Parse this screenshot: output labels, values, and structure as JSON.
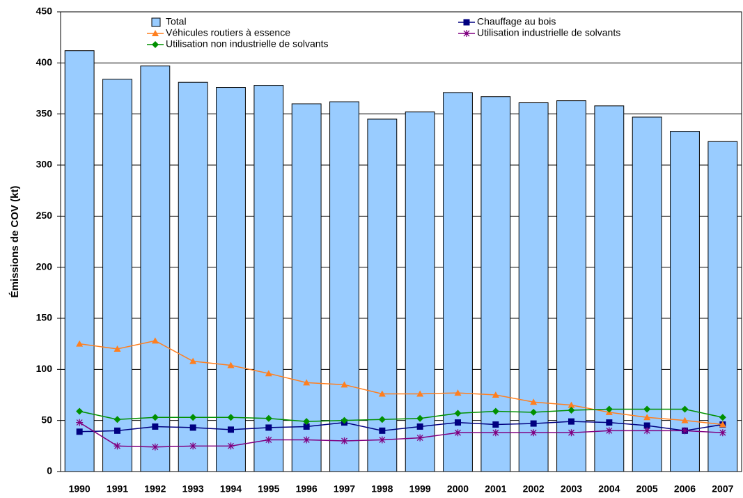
{
  "chart_data": {
    "type": "bar",
    "y_label": "Émissions de COV (kt)",
    "categories": [
      "1990",
      "1991",
      "1992",
      "1993",
      "1994",
      "1995",
      "1996",
      "1997",
      "1998",
      "1999",
      "2000",
      "2001",
      "2002",
      "2003",
      "2004",
      "2005",
      "2006",
      "2007"
    ],
    "ylim": [
      0,
      450
    ],
    "yticks": [
      0,
      50,
      100,
      150,
      200,
      250,
      300,
      350,
      400,
      450
    ],
    "grid": true,
    "series": [
      {
        "name": "Total",
        "type": "bar",
        "color": "#99ccff",
        "values": [
          412,
          384,
          397,
          381,
          376,
          378,
          360,
          362,
          345,
          352,
          371,
          367,
          361,
          363,
          358,
          347,
          333,
          323
        ]
      },
      {
        "name": "Chauffage au bois",
        "type": "line",
        "marker": "square",
        "color": "#000080",
        "values": [
          39,
          40,
          44,
          43,
          41,
          43,
          44,
          48,
          40,
          44,
          48,
          46,
          47,
          49,
          48,
          45,
          40,
          46
        ]
      },
      {
        "name": "Véhicules routiers à essence",
        "type": "line",
        "marker": "triangle",
        "color": "#ff7f1f",
        "values": [
          125,
          120,
          128,
          108,
          104,
          96,
          87,
          85,
          76,
          76,
          77,
          75,
          68,
          65,
          58,
          53,
          50,
          46
        ]
      },
      {
        "name": "Utilisation industrielle de solvants",
        "type": "line",
        "marker": "asterisk",
        "color": "#800080",
        "values": [
          48,
          25,
          24,
          25,
          25,
          31,
          31,
          30,
          31,
          33,
          38,
          38,
          38,
          38,
          40,
          40,
          40,
          38
        ]
      },
      {
        "name": "Utilisation non industrielle de solvants",
        "type": "line",
        "marker": "diamond",
        "color": "#009000",
        "values": [
          59,
          51,
          53,
          53,
          53,
          52,
          49,
          50,
          51,
          52,
          57,
          59,
          58,
          60,
          61,
          61,
          61,
          53
        ]
      }
    ]
  }
}
